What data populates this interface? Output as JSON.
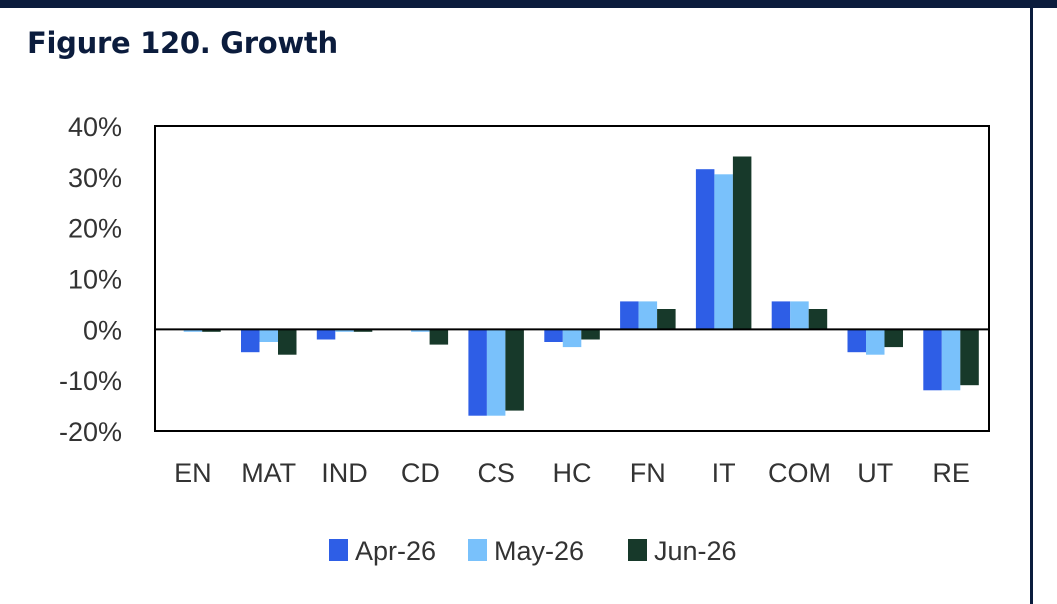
{
  "figure_title": "Figure 120. Growth",
  "colors": {
    "frame": "#0b1c3d",
    "apr": "#2e5ee6",
    "may": "#79c1fb",
    "jun": "#17392a"
  },
  "chart_data": {
    "type": "bar",
    "title": "",
    "xlabel": "",
    "ylabel": "",
    "categories": [
      "EN",
      "MAT",
      "IND",
      "CD",
      "CS",
      "HC",
      "FN",
      "IT",
      "COM",
      "UT",
      "RE"
    ],
    "series": [
      {
        "name": "Apr-26",
        "color": "#2e5ee6",
        "values": [
          0,
          -4.5,
          -2,
          0,
          -17,
          -2.5,
          5.5,
          31.5,
          5.5,
          -4.5,
          -12
        ]
      },
      {
        "name": "May-26",
        "color": "#79c1fb",
        "values": [
          -0.5,
          -2.5,
          -0.5,
          -0.5,
          -17,
          -3.5,
          5.5,
          30.5,
          5.5,
          -5,
          -12
        ]
      },
      {
        "name": "Jun-26",
        "color": "#17392a",
        "values": [
          -0.5,
          -5,
          -0.5,
          -3,
          -16,
          -2,
          4,
          34,
          4,
          -3.5,
          -11
        ]
      }
    ],
    "ylim": [
      -20,
      40
    ],
    "yticks": [
      40,
      30,
      20,
      10,
      0,
      -10,
      -20
    ],
    "ytick_labels": [
      "40%",
      "30%",
      "20%",
      "10%",
      "0%",
      "-10%",
      "-20%"
    ],
    "grid": false,
    "legend": {
      "position": "bottom"
    }
  }
}
